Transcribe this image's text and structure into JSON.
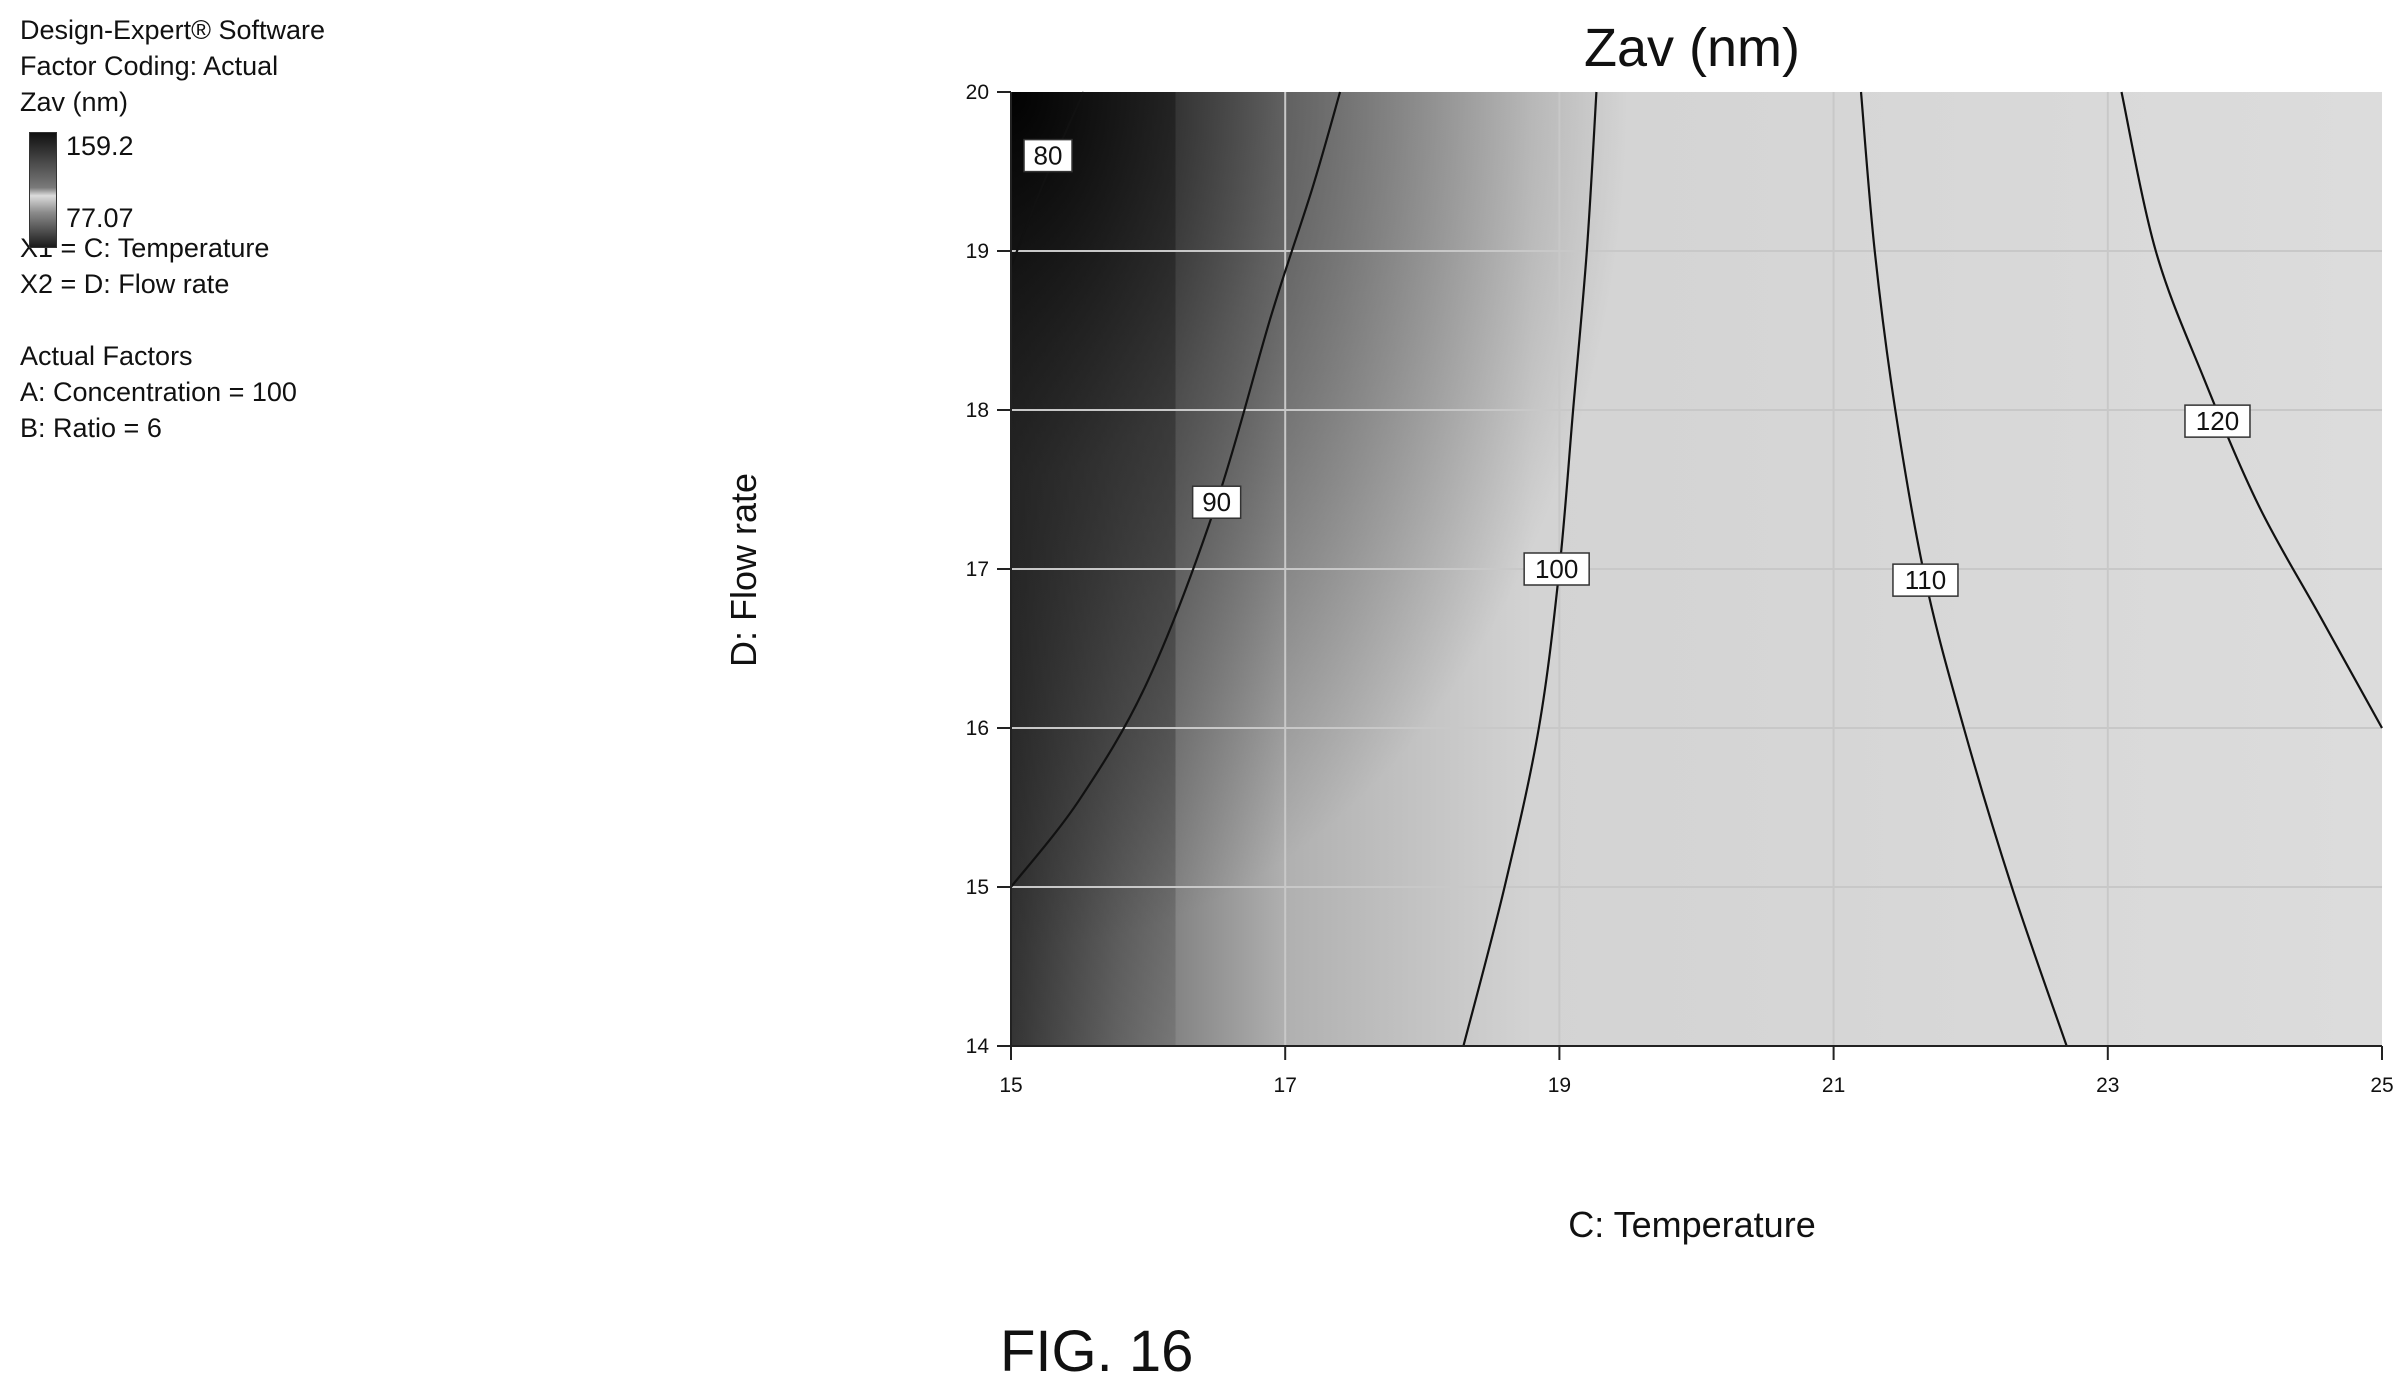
{
  "info_panel": {
    "software": "Design-Expert® Software",
    "factor_coding": "Factor Coding: Actual",
    "response": "Zav (nm)",
    "legend_max": "159.2",
    "legend_min": "77.07",
    "x1": "X1 = C: Temperature",
    "x2": "X2 = D: Flow rate",
    "actual_factors_title": "Actual Factors",
    "factor_a": "A: Concentration = 100",
    "factor_b": "B: Ratio = 6"
  },
  "figure_label": "FIG. 16",
  "chart_data": {
    "type": "contour",
    "title": "Zav (nm)",
    "xlabel": "C: Temperature",
    "ylabel": "D: Flow rate",
    "xlim": [
      15,
      25
    ],
    "ylim": [
      14,
      20
    ],
    "xticks": [
      15,
      17,
      19,
      21,
      23,
      25
    ],
    "yticks": [
      14,
      15,
      16,
      17,
      18,
      19,
      20
    ],
    "grid": true,
    "colorscale": {
      "min": 77.07,
      "max": 159.2,
      "low_color": "#111111",
      "high_color": "#dcdcdc"
    },
    "contours": [
      {
        "level": "80",
        "label_at": [
          15.27,
          19.6
        ],
        "points": [
          [
            15,
            18.9
          ],
          [
            15.2,
            19.35
          ],
          [
            15.4,
            19.75
          ],
          [
            15.53,
            20
          ]
        ]
      },
      {
        "level": "90",
        "label_at": [
          16.5,
          17.42
        ],
        "points": [
          [
            15,
            15
          ],
          [
            15.5,
            15.55
          ],
          [
            16.0,
            16.3
          ],
          [
            16.5,
            17.42
          ],
          [
            16.9,
            18.6
          ],
          [
            17.2,
            19.4
          ],
          [
            17.4,
            20
          ]
        ]
      },
      {
        "level": "100",
        "label_at": [
          18.98,
          17.0
        ],
        "points": [
          [
            18.3,
            14
          ],
          [
            18.6,
            15.0
          ],
          [
            18.85,
            16.0
          ],
          [
            19.0,
            17.0
          ],
          [
            19.1,
            18.0
          ],
          [
            19.2,
            19.0
          ],
          [
            19.27,
            20
          ]
        ]
      },
      {
        "level": "110",
        "label_at": [
          21.67,
          16.93
        ],
        "points": [
          [
            21.2,
            20
          ],
          [
            21.3,
            19.0
          ],
          [
            21.45,
            18.0
          ],
          [
            21.67,
            16.93
          ],
          [
            21.95,
            16.0
          ],
          [
            22.3,
            15.0
          ],
          [
            22.7,
            14
          ]
        ]
      },
      {
        "level": "120",
        "label_at": [
          23.8,
          17.93
        ],
        "points": [
          [
            23.1,
            20
          ],
          [
            23.35,
            19.0
          ],
          [
            23.7,
            18.2
          ],
          [
            24.1,
            17.4
          ],
          [
            24.55,
            16.7
          ],
          [
            25,
            16.0
          ]
        ]
      }
    ]
  }
}
